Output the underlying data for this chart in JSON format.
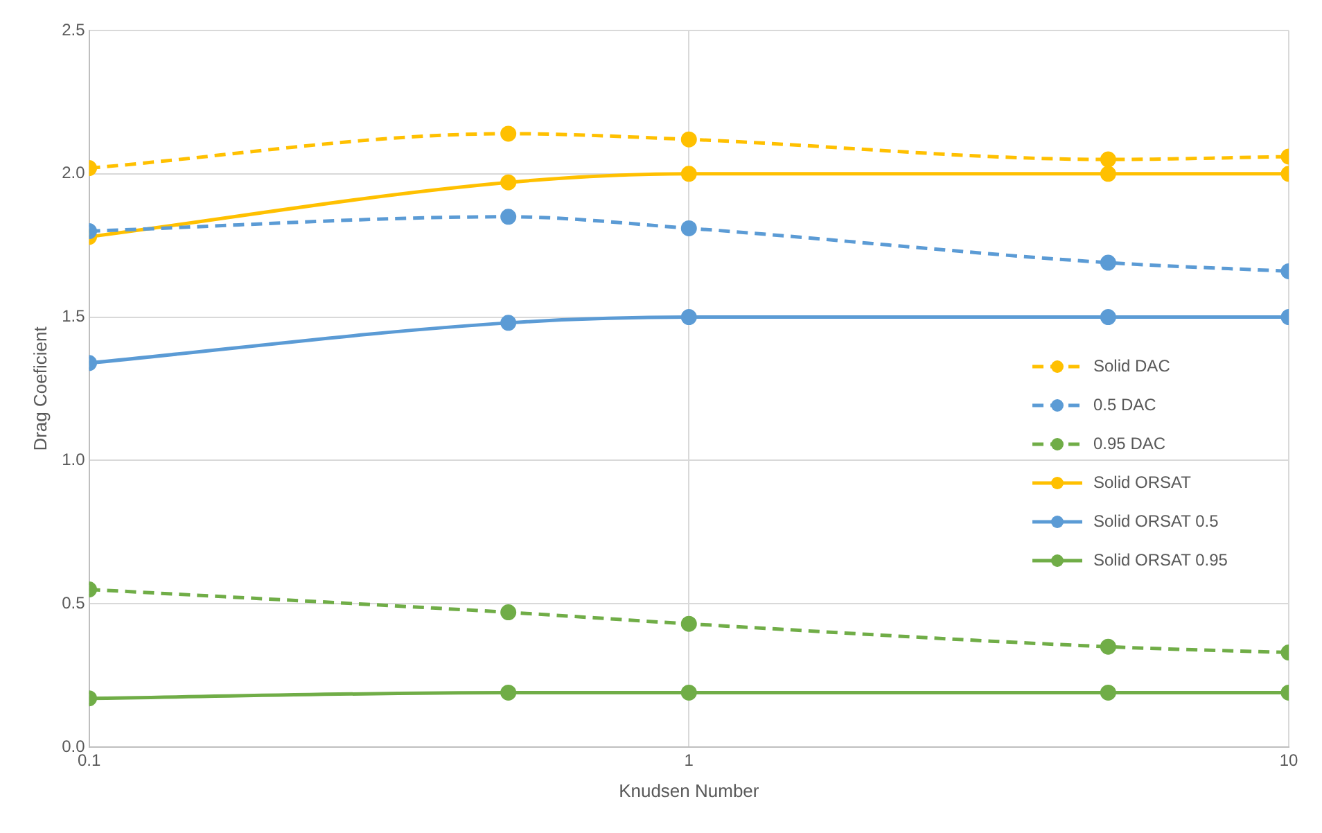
{
  "chart_data": {
    "type": "line",
    "xlabel": "Knudsen Number",
    "ylabel": "Drag Coeficient",
    "x": [
      0.1,
      0.5,
      1,
      5,
      10
    ],
    "series": [
      {
        "name": "Solid DAC",
        "color": "#ffc000",
        "line_style": "dashed",
        "values": [
          2.02,
          2.14,
          2.12,
          2.05,
          2.06
        ]
      },
      {
        "name": "0.5 DAC",
        "color": "#5b9bd5",
        "line_style": "dashed",
        "values": [
          1.8,
          1.85,
          1.81,
          1.69,
          1.66
        ]
      },
      {
        "name": "0.95 DAC",
        "color": "#70ad47",
        "line_style": "dashed",
        "values": [
          0.55,
          0.47,
          0.43,
          0.35,
          0.33
        ]
      },
      {
        "name": "Solid ORSAT",
        "color": "#ffc000",
        "line_style": "solid",
        "values": [
          1.78,
          1.97,
          2.0,
          2.0,
          2.0
        ]
      },
      {
        "name": "Solid ORSAT 0.5",
        "color": "#5b9bd5",
        "line_style": "solid",
        "values": [
          1.34,
          1.48,
          1.5,
          1.5,
          1.5
        ]
      },
      {
        "name": "Solid ORSAT 0.95",
        "color": "#70ad47",
        "line_style": "solid",
        "values": [
          0.17,
          0.19,
          0.19,
          0.19,
          0.19
        ]
      }
    ],
    "log": "x",
    "xlim": [
      0.1,
      10
    ],
    "xticks": [
      0.1,
      1,
      10
    ],
    "ylim": [
      0,
      2.5
    ],
    "yticks": [
      {
        "value": 0,
        "label": "0.0"
      },
      {
        "value": 0.5,
        "label": "0.5"
      },
      {
        "value": 1,
        "label": "1.0"
      },
      {
        "value": 1.5,
        "label": "1.5"
      },
      {
        "value": 2,
        "label": "2.0"
      },
      {
        "value": 2.5,
        "label": "2.5"
      }
    ],
    "grid": true,
    "legend": "right",
    "marker": "circle"
  }
}
